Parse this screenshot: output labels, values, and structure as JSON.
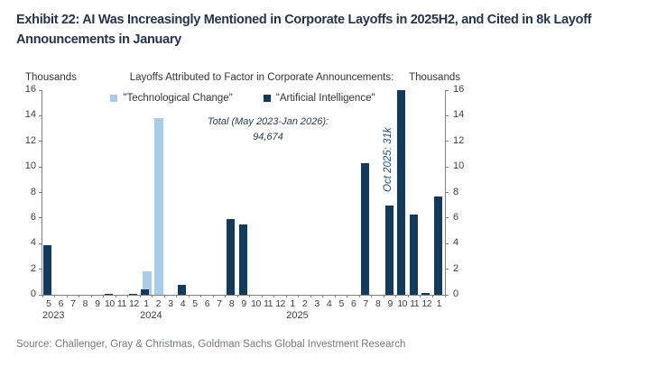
{
  "header": {
    "title": "Exhibit 22: AI Was Increasingly Mentioned in Corporate Layoffs in 2025H2, and Cited in 8k Layoff Announcements in January"
  },
  "chart": {
    "unit_left": "Thousands",
    "unit_right": "Thousands",
    "subtitle": "Layoffs Attributed to Factor in Corporate Announcements:"
  },
  "chart_data": {
    "type": "bar",
    "title": "Layoffs Attributed to Factor in Corporate Announcements",
    "ylabel_left": "Thousands",
    "ylabel_right": "Thousands",
    "ylim": [
      0,
      16
    ],
    "yticks": [
      0,
      2,
      4,
      6,
      8,
      10,
      12,
      14,
      16
    ],
    "grid": false,
    "legend_position": "top-center",
    "categories": [
      "5",
      "6",
      "7",
      "8",
      "9",
      "10",
      "11",
      "12",
      "1",
      "2",
      "3",
      "4",
      "5",
      "6",
      "7",
      "8",
      "9",
      "10",
      "11",
      "12",
      "1",
      "2",
      "3",
      "4",
      "5",
      "6",
      "7",
      "8",
      "9",
      "10",
      "11",
      "12",
      "1"
    ],
    "year_labels": [
      {
        "index": 0,
        "label": "2023"
      },
      {
        "index": 8,
        "label": "2024"
      },
      {
        "index": 20,
        "label": "2025"
      }
    ],
    "series": [
      {
        "name": "\"Technological Change\"",
        "color": "#a9ccea",
        "values": [
          0,
          0,
          0,
          0,
          0,
          0,
          0,
          0,
          1.8,
          13.8,
          0,
          0,
          0,
          0,
          0,
          0,
          0,
          0,
          0,
          0,
          0,
          0,
          0,
          0,
          0,
          0,
          0,
          0,
          0,
          0,
          0,
          0,
          0
        ]
      },
      {
        "name": "\"Artificial Intelligence\"",
        "color": "#123a5c",
        "values": [
          3.9,
          0,
          0,
          0,
          0,
          0.1,
          0,
          0.1,
          0.4,
          0,
          0,
          0.8,
          0,
          0,
          0,
          5.9,
          5.5,
          0,
          0,
          0,
          0,
          0,
          0,
          0,
          0,
          0,
          10.3,
          0,
          7,
          16,
          6.3,
          0.15,
          7.7
        ]
      }
    ],
    "annotations": {
      "total_line1": "Total (May 2023-Jan 2026):",
      "total_line2": "94,674",
      "oct_2025": "Oct 2025: 31k",
      "note": "Oct 2025 bar is clipped at axis max 16 (annotated actual value 31k)"
    }
  },
  "footer": {
    "source": "Source: Challenger, Gray & Christmas, Goldman Sachs Global Investment Research"
  }
}
